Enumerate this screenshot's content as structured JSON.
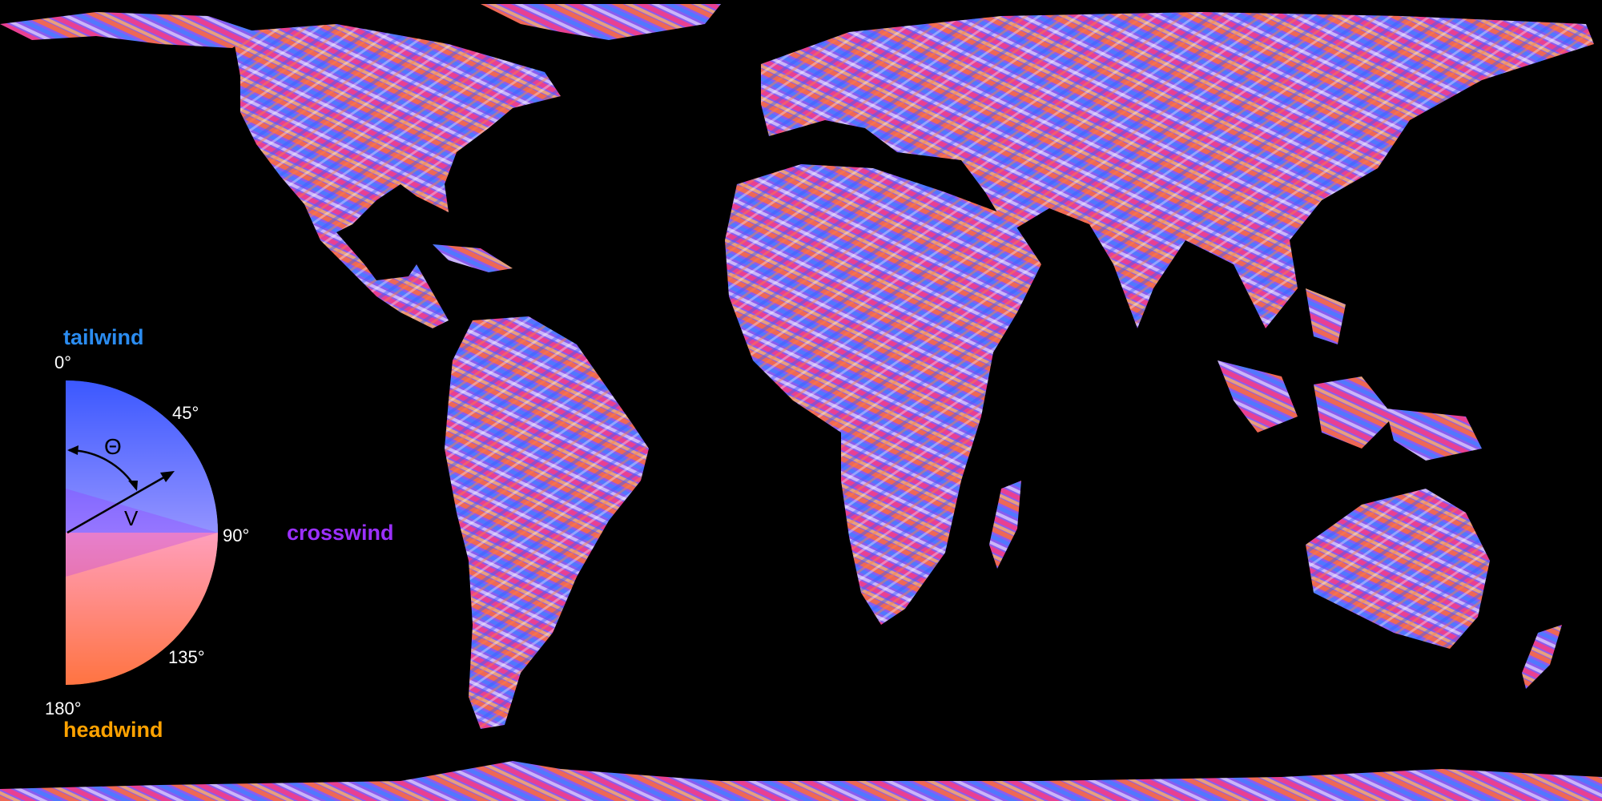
{
  "legend": {
    "tailwind_label": "tailwind",
    "crosswind_label": "crosswind",
    "headwind_label": "headwind",
    "angle_ticks": [
      "0°",
      "45°",
      "90°",
      "135°",
      "180°"
    ],
    "theta_symbol": "Θ",
    "vector_symbol": "V",
    "colors": {
      "tailwind": "#2b8cf0",
      "crosswind": "#9b30ff",
      "headwind": "#ffa200",
      "legend_0deg": "#3d7cff",
      "legend_45deg": "#2b3cff",
      "legend_90deg": "#9b00ff",
      "legend_135deg": "#ff1050",
      "legend_180deg": "#ffb020",
      "legend_center": "#ffffff"
    },
    "icons": [
      "theta-arc-arrow-icon",
      "wind-vector-arrow-icon"
    ]
  },
  "map": {
    "projection": "equirectangular world",
    "background": "#000000",
    "land_palette": [
      "#ff6a3a",
      "#6a5cff",
      "#c05adf",
      "#ffffff",
      "#ffb060",
      "#ff3a7a",
      "#4a7bff"
    ]
  }
}
